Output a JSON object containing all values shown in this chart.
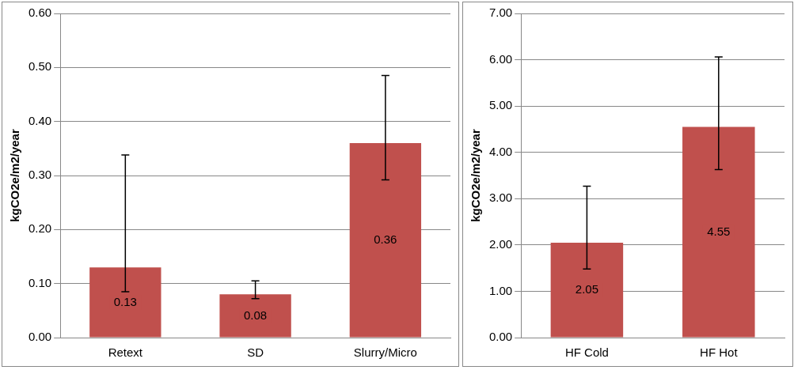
{
  "chart_data": [
    {
      "type": "bar",
      "ylabel": "kgCO2e/m2/year",
      "categories": [
        "Retext",
        "SD",
        "Slurry/Micro"
      ],
      "values": [
        0.13,
        0.08,
        0.36
      ],
      "color": "#c0504d",
      "errors": [
        [
          0.085,
          0.338
        ],
        [
          0.072,
          0.105
        ],
        [
          0.292,
          0.485
        ]
      ],
      "data_labels": true,
      "ylim": [
        0,
        0.6
      ],
      "yticks": [
        {
          "value": 0,
          "label": "0.00"
        },
        {
          "value": 0.1,
          "label": "0.10"
        },
        {
          "value": 0.2,
          "label": "0.20"
        },
        {
          "value": 0.3,
          "label": "0.30"
        },
        {
          "value": 0.4,
          "label": "0.40"
        },
        {
          "value": 0.5,
          "label": "0.50"
        },
        {
          "value": 0.6,
          "label": "0.60"
        }
      ],
      "grid": "y",
      "legend": false
    },
    {
      "type": "bar",
      "ylabel": "kgCO2e/m2/year",
      "categories": [
        "HF Cold",
        "HF Hot"
      ],
      "values": [
        2.05,
        4.55
      ],
      "color": "#c0504d",
      "errors": [
        [
          1.48,
          3.27
        ],
        [
          3.63,
          6.06
        ]
      ],
      "data_labels": true,
      "ylim": [
        0,
        7
      ],
      "yticks": [
        {
          "value": 0,
          "label": "0.00"
        },
        {
          "value": 1,
          "label": "1.00"
        },
        {
          "value": 2,
          "label": "2.00"
        },
        {
          "value": 3,
          "label": "3.00"
        },
        {
          "value": 4,
          "label": "4.00"
        },
        {
          "value": 5,
          "label": "5.00"
        },
        {
          "value": 6,
          "label": "6.00"
        },
        {
          "value": 7,
          "label": "7.00"
        }
      ],
      "grid": "y",
      "legend": false
    }
  ]
}
